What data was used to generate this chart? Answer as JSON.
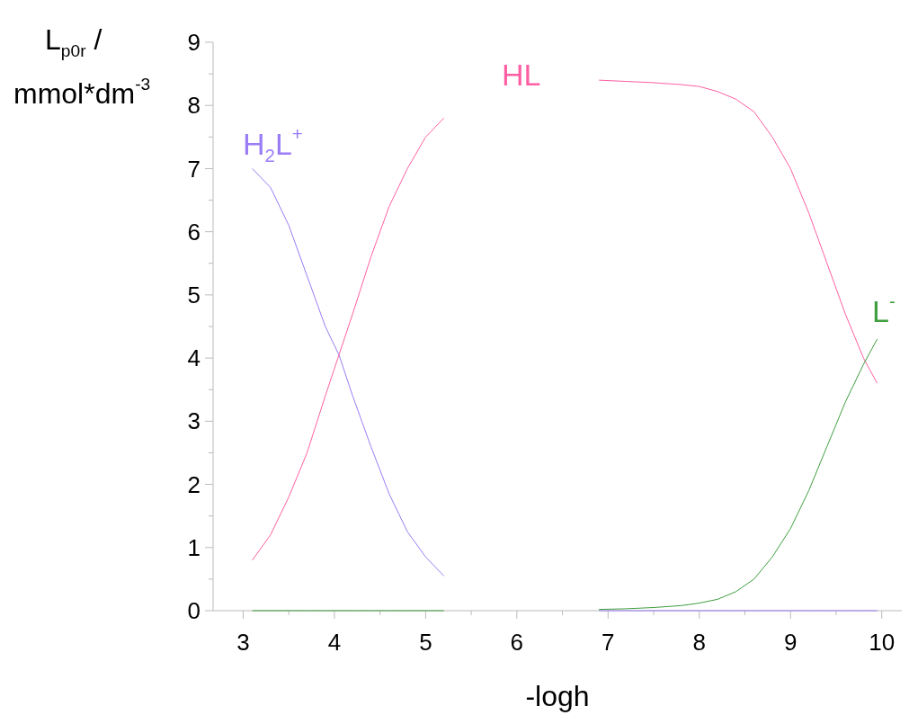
{
  "chart_data": {
    "type": "line",
    "xlabel": "-logh",
    "ylabel": "L$_{p0r}$ /\nmmol*dm$^{-3}$",
    "x": [
      3.1,
      3.3,
      3.5,
      3.7,
      3.9,
      4.05,
      4.2,
      4.4,
      4.6,
      4.8,
      5.0,
      5.2,
      6.0,
      6.9,
      7.2,
      7.5,
      7.8,
      8.0,
      8.2,
      8.4,
      8.6,
      8.8,
      9.0,
      9.2,
      9.4,
      9.6,
      9.8,
      9.95
    ],
    "series": [
      {
        "name": "H$_{2}$L$^{+}$",
        "color": "#9a7cf5",
        "values": [
          7.0,
          6.7,
          6.1,
          5.3,
          4.5,
          4.05,
          3.4,
          2.6,
          1.85,
          1.25,
          0.85,
          0.55,
          null,
          0,
          0,
          0,
          0,
          0,
          0,
          0,
          0,
          0,
          0,
          0,
          0,
          0,
          0,
          0
        ]
      },
      {
        "name": "HL",
        "color": "#ff5fa2",
        "values": [
          0.8,
          1.2,
          1.8,
          2.5,
          3.4,
          4.05,
          4.7,
          5.6,
          6.4,
          7.0,
          7.5,
          7.8,
          null,
          8.4,
          8.38,
          8.36,
          8.33,
          8.3,
          8.22,
          8.1,
          7.9,
          7.5,
          7.0,
          6.3,
          5.5,
          4.7,
          4.0,
          3.6
        ]
      },
      {
        "name": "L$^{-}$",
        "color": "#3f9f3f",
        "values": [
          0,
          0,
          0,
          0,
          0,
          0,
          0,
          0,
          0,
          0,
          0,
          0,
          null,
          0.02,
          0.03,
          0.05,
          0.08,
          0.12,
          0.18,
          0.3,
          0.5,
          0.85,
          1.3,
          1.9,
          2.6,
          3.3,
          3.9,
          4.3
        ]
      }
    ],
    "xlim": [
      2.67,
      10.22
    ],
    "ylim": [
      0,
      9
    ],
    "xticks": [
      3,
      {
        "value": 3.5,
        "label": null
      },
      4,
      {
        "value": 4.5,
        "label": null
      },
      5,
      {
        "value": 5.5,
        "label": null
      },
      6,
      {
        "value": 6.5,
        "label": null
      },
      7,
      {
        "value": 7.5,
        "label": null
      },
      8,
      {
        "value": 8.5,
        "label": null
      },
      9,
      {
        "value": 9.5,
        "label": null
      },
      10
    ],
    "yticks": [
      0,
      {
        "value": 0.5,
        "label": null
      },
      1,
      {
        "value": 1.5,
        "label": null
      },
      2,
      {
        "value": 2.5,
        "label": null
      },
      3,
      {
        "value": 3.5,
        "label": null
      },
      4,
      {
        "value": 4.5,
        "label": null
      },
      5,
      {
        "value": 5.5,
        "label": null
      },
      6,
      {
        "value": 6.5,
        "label": null
      },
      7,
      {
        "value": 7.5,
        "label": null
      },
      8,
      {
        "value": 8.5,
        "label": null
      },
      9
    ],
    "grid": false,
    "marker": "none",
    "line_style": "solid"
  }
}
